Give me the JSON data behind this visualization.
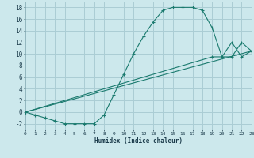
{
  "xlabel": "Humidex (Indice chaleur)",
  "bg_color": "#cce8ec",
  "grid_color": "#aacdd4",
  "line_color": "#1a7a6e",
  "xlim": [
    0,
    23
  ],
  "ylim": [
    -3,
    19
  ],
  "xticks": [
    0,
    1,
    2,
    3,
    4,
    5,
    6,
    7,
    8,
    9,
    10,
    11,
    12,
    13,
    14,
    15,
    16,
    17,
    18,
    19,
    20,
    21,
    22,
    23
  ],
  "yticks": [
    -2,
    0,
    2,
    4,
    6,
    8,
    10,
    12,
    14,
    16,
    18
  ],
  "line1_x": [
    0,
    1,
    2,
    3,
    4,
    5,
    6,
    7,
    8,
    9,
    10,
    11,
    12,
    13,
    14,
    15,
    16,
    17,
    18,
    19,
    20,
    21,
    22,
    23
  ],
  "line1_y": [
    0,
    -0.5,
    -1,
    -1.5,
    -2,
    -2,
    -2,
    -2,
    -0.5,
    3,
    6.5,
    10,
    13,
    15.5,
    17.5,
    18,
    18,
    18,
    17.5,
    14.5,
    9.5,
    12,
    9.5,
    10.5
  ],
  "line2_x": [
    0,
    19,
    21,
    22,
    23
  ],
  "line2_y": [
    0,
    9.5,
    9.5,
    12,
    10.5
  ],
  "line3_x": [
    0,
    23
  ],
  "line3_y": [
    0,
    10.5
  ]
}
